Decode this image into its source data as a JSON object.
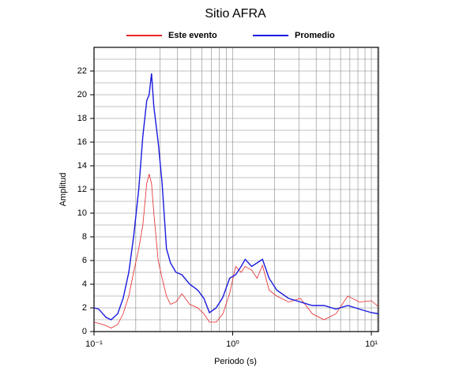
{
  "chart_data": {
    "type": "line",
    "title": "Sitio AFRA",
    "xlabel": "Periodo (s)",
    "ylabel": "Amplitud",
    "xscale": "log",
    "grid": true,
    "legend": "top",
    "x": [
      0.1,
      0.108,
      0.122,
      0.133,
      0.148,
      0.162,
      0.178,
      0.193,
      0.21,
      0.225,
      0.24,
      0.25,
      0.26,
      0.27,
      0.29,
      0.31,
      0.333,
      0.356,
      0.39,
      0.43,
      0.49,
      0.56,
      0.62,
      0.68,
      0.76,
      0.85,
      0.95,
      1.05,
      1.15,
      1.23,
      1.37,
      1.5,
      1.64,
      1.83,
      2.08,
      2.53,
      3.08,
      3.75,
      4.56,
      5.55,
      6.75,
      8.2,
      10,
      11.25
    ],
    "series": [
      {
        "name": "Este evento",
        "color": "#e8272a",
        "width": 0.8,
        "values": [
          0.8,
          0.7,
          0.5,
          0.3,
          0.6,
          1.5,
          3,
          5,
          7,
          9,
          12.5,
          13.3,
          12.5,
          10,
          6,
          4.5,
          3,
          2.3,
          2.5,
          3.2,
          2.3,
          2.0,
          1.5,
          0.8,
          0.8,
          1.5,
          3.2,
          5.5,
          5.0,
          5.5,
          5.2,
          4.5,
          5.6,
          3.5,
          3,
          2.5,
          2.8,
          1.5,
          1.0,
          1.5,
          3.0,
          2.5,
          2.6,
          2.1
        ]
      },
      {
        "name": "Promedio",
        "color": "#1a1adf",
        "width": 1.4,
        "values": [
          2.0,
          1.9,
          1.2,
          1.0,
          1.5,
          2.8,
          5.0,
          8,
          12,
          16.5,
          19.5,
          20,
          21.8,
          19,
          16,
          12.5,
          7,
          5.8,
          5.0,
          4.8,
          4.0,
          3.5,
          2.8,
          1.6,
          2.0,
          2.9,
          4.5,
          4.8,
          5.5,
          6.1,
          5.5,
          5.8,
          6.1,
          4.5,
          3.5,
          2.8,
          2.5,
          2.2,
          2.2,
          1.9,
          2.2,
          1.9,
          1.6,
          1.5
        ]
      }
    ],
    "xlim": [
      0.1,
      11.25
    ],
    "ylim": [
      0,
      24
    ],
    "xticks": [
      {
        "value": 0.1,
        "label": "10⁻¹"
      },
      {
        "value": 1,
        "label": "10⁰"
      },
      {
        "value": 10,
        "label": "10¹"
      }
    ],
    "xgrid": [
      0.2,
      0.3,
      0.4,
      0.5,
      0.6,
      0.7,
      0.8,
      0.9,
      2,
      3,
      4,
      5,
      6,
      7,
      8,
      9,
      11
    ],
    "yticks": [
      0,
      2,
      4,
      6,
      8,
      10,
      12,
      14,
      16,
      18,
      20,
      22
    ],
    "ygrid": [
      1,
      3,
      5,
      7,
      9,
      11,
      13,
      15,
      17,
      19,
      21,
      23
    ]
  }
}
